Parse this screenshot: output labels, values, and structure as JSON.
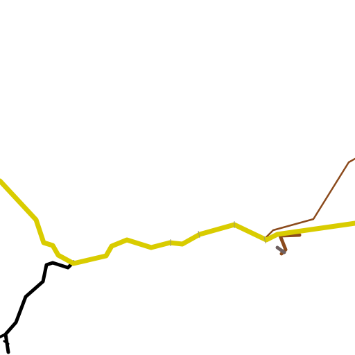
{
  "map": {
    "background_color": "#ffffff",
    "routes": [
      {
        "kind": "primary-road",
        "color": "#d9cc00"
      },
      {
        "kind": "minor-road",
        "color": "#000000"
      },
      {
        "kind": "brown-track",
        "color": "#8b4a1c"
      },
      {
        "kind": "grey-track",
        "color": "#6e6060"
      }
    ]
  }
}
